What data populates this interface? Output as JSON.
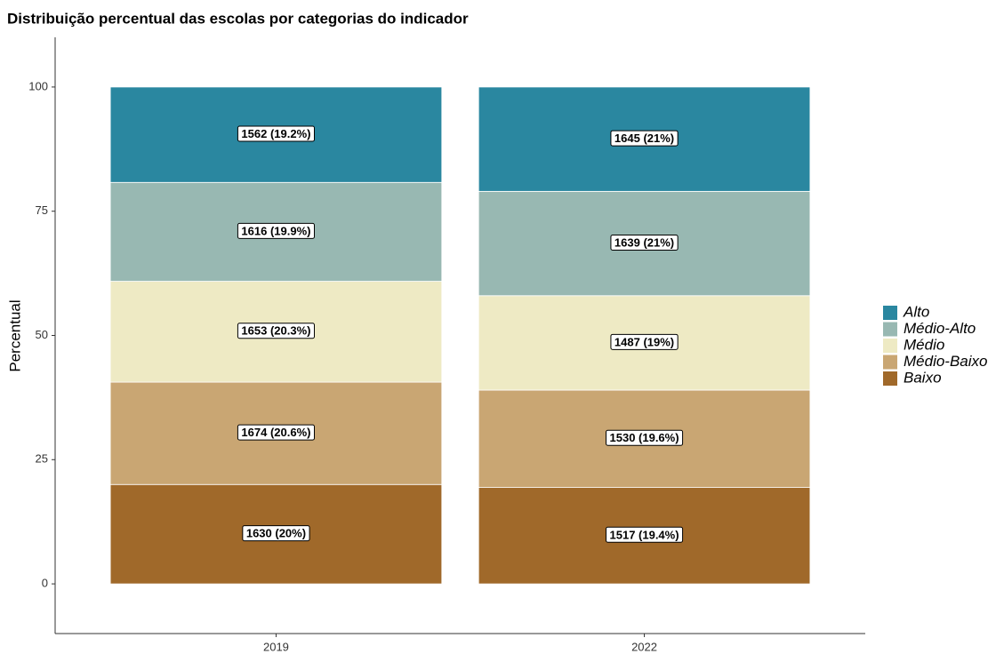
{
  "chart_data": {
    "type": "stacked_bar",
    "title": "Distribuição percentual das escolas por categorias do indicador",
    "y_label": "Percentual",
    "categories": [
      "2019",
      "2022"
    ],
    "series": [
      {
        "name": "Baixo",
        "color": "#a0692a",
        "values": [
          20,
          19.4
        ],
        "value_labels": [
          "1630 (20%)",
          "1517 (19.4%)"
        ]
      },
      {
        "name": "Médio-Baixo",
        "color": "#c9a673",
        "values": [
          20.6,
          19.6
        ],
        "value_labels": [
          "1674 (20.6%)",
          "1530 (19.6%)"
        ]
      },
      {
        "name": "Médio",
        "color": "#eeeac4",
        "values": [
          20.3,
          19
        ],
        "value_labels": [
          "1653 (20.3%)",
          "1487 (19%)"
        ]
      },
      {
        "name": "Médio-Alto",
        "color": "#98b8b2",
        "values": [
          19.9,
          21
        ],
        "value_labels": [
          "1616 (19.9%)",
          "1639 (21%)"
        ]
      },
      {
        "name": "Alto",
        "color": "#2a87a0",
        "values": [
          19.2,
          21
        ],
        "value_labels": [
          "1562 (19.2%)",
          "1645 (21%)"
        ]
      }
    ],
    "ylim": [
      -10,
      110
    ],
    "yticks": [
      0,
      25,
      50,
      75,
      100
    ],
    "legend": "right"
  }
}
